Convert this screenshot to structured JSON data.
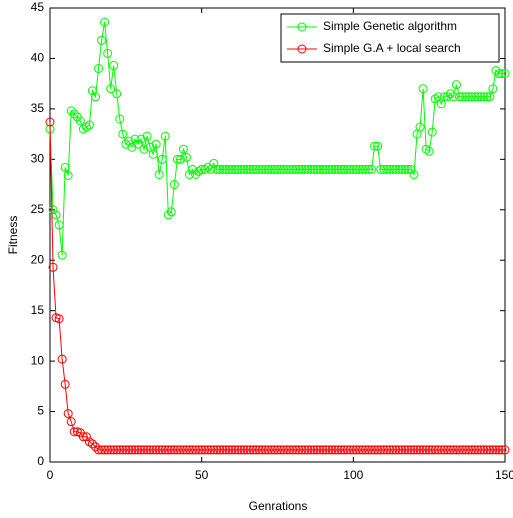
{
  "chart_data": {
    "type": "line",
    "xlabel": "Genrations",
    "ylabel": "Fitness",
    "x": [
      0,
      1,
      2,
      3,
      4,
      5,
      6,
      7,
      8,
      9,
      10,
      11,
      12,
      13,
      14,
      15,
      16,
      17,
      18,
      19,
      20,
      21,
      22,
      23,
      24,
      25,
      26,
      27,
      28,
      29,
      30,
      31,
      32,
      33,
      34,
      35,
      36,
      37,
      38,
      39,
      40,
      41,
      42,
      43,
      44,
      45,
      46,
      47,
      48,
      49,
      50,
      51,
      52,
      53,
      54,
      55,
      56,
      57,
      58,
      59,
      60,
      61,
      62,
      63,
      64,
      65,
      66,
      67,
      68,
      69,
      70,
      71,
      72,
      73,
      74,
      75,
      76,
      77,
      78,
      79,
      80,
      81,
      82,
      83,
      84,
      85,
      86,
      87,
      88,
      89,
      90,
      91,
      92,
      93,
      94,
      95,
      96,
      97,
      98,
      99,
      100,
      101,
      102,
      103,
      104,
      105,
      106,
      107,
      108,
      109,
      110,
      111,
      112,
      113,
      114,
      115,
      116,
      117,
      118,
      119,
      120,
      121,
      122,
      123,
      124,
      125,
      126,
      127,
      128,
      129,
      130,
      131,
      132,
      133,
      134,
      135,
      136,
      137,
      138,
      139,
      140,
      141,
      142,
      143,
      144,
      145,
      146,
      147,
      148,
      149,
      150
    ],
    "series": [
      {
        "name": "Simple Genetic algorithm",
        "color": "#00ff00",
        "values": [
          33,
          25,
          24.5,
          23.5,
          20.5,
          29.2,
          28.4,
          34.8,
          34.5,
          34.2,
          33.8,
          33,
          33.2,
          33.4,
          36.8,
          36.2,
          39,
          41.8,
          43.6,
          40.5,
          37,
          39.3,
          36.5,
          34,
          32.5,
          31.5,
          31.8,
          31.2,
          32,
          31.5,
          32,
          31,
          32.3,
          31.2,
          30.5,
          31.5,
          28.5,
          30,
          32.3,
          24.5,
          24.8,
          27.5,
          30,
          30,
          31,
          30.2,
          28.5,
          29,
          28.5,
          28.8,
          29,
          29,
          29.2,
          29,
          29.6,
          29,
          29,
          29,
          29,
          29,
          29,
          29,
          29,
          29,
          29,
          29,
          29,
          29,
          29,
          29,
          29,
          29,
          29,
          29,
          29,
          29,
          29,
          29,
          29,
          29,
          29,
          29,
          29,
          29,
          29,
          29,
          29,
          29,
          29,
          29,
          29,
          29,
          29,
          29,
          29,
          29,
          29,
          29,
          29,
          29,
          29,
          29,
          29,
          29,
          29,
          29,
          29,
          31.3,
          31.3,
          29,
          29,
          29,
          29,
          29,
          29,
          29,
          29,
          29,
          29,
          29,
          28.5,
          32.5,
          33.2,
          37,
          31,
          30.8,
          32.7,
          36,
          36.2,
          35.5,
          36.2,
          36.2,
          36.5,
          36.2,
          37.4,
          36.2,
          36.2,
          36.2,
          36.2,
          36.2,
          36.2,
          36.2,
          36.2,
          36.2,
          36.2,
          36.2,
          37,
          38.8,
          38.5,
          38.5,
          38.5
        ]
      },
      {
        "name": "Simple G.A + local search",
        "color": "#ff0000",
        "values": [
          33.7,
          19.3,
          14.3,
          14.2,
          10.2,
          7.7,
          4.8,
          4,
          3,
          3,
          2.9,
          2.5,
          2.5,
          2,
          1.8,
          1.5,
          1.2,
          1.2,
          1.2,
          1.2,
          1.2,
          1.2,
          1.2,
          1.2,
          1.2,
          1.2,
          1.2,
          1.2,
          1.2,
          1.2,
          1.2,
          1.2,
          1.2,
          1.2,
          1.2,
          1.2,
          1.2,
          1.2,
          1.2,
          1.2,
          1.2,
          1.2,
          1.2,
          1.2,
          1.2,
          1.2,
          1.2,
          1.2,
          1.2,
          1.2,
          1.2,
          1.2,
          1.2,
          1.2,
          1.2,
          1.2,
          1.2,
          1.2,
          1.2,
          1.2,
          1.2,
          1.2,
          1.2,
          1.2,
          1.2,
          1.2,
          1.2,
          1.2,
          1.2,
          1.2,
          1.2,
          1.2,
          1.2,
          1.2,
          1.2,
          1.2,
          1.2,
          1.2,
          1.2,
          1.2,
          1.2,
          1.2,
          1.2,
          1.2,
          1.2,
          1.2,
          1.2,
          1.2,
          1.2,
          1.2,
          1.2,
          1.2,
          1.2,
          1.2,
          1.2,
          1.2,
          1.2,
          1.2,
          1.2,
          1.2,
          1.2,
          1.2,
          1.2,
          1.2,
          1.2,
          1.2,
          1.2,
          1.2,
          1.2,
          1.2,
          1.2,
          1.2,
          1.2,
          1.2,
          1.2,
          1.2,
          1.2,
          1.2,
          1.2,
          1.2,
          1.2,
          1.2,
          1.2,
          1.2,
          1.2,
          1.2,
          1.2,
          1.2,
          1.2,
          1.2,
          1.2,
          1.2,
          1.2,
          1.2,
          1.2,
          1.2,
          1.2,
          1.2,
          1.2,
          1.2,
          1.2,
          1.2,
          1.2,
          1.2,
          1.2,
          1.2,
          1.2,
          1.2,
          1.2,
          1.2,
          1.2
        ]
      }
    ],
    "xlim": [
      0,
      150
    ],
    "xticks": [
      0,
      50,
      100,
      150
    ],
    "ylim": [
      0,
      45
    ],
    "yticks": [
      0,
      5,
      10,
      15,
      20,
      25,
      30,
      35,
      40,
      45
    ],
    "legend": "upper right"
  }
}
